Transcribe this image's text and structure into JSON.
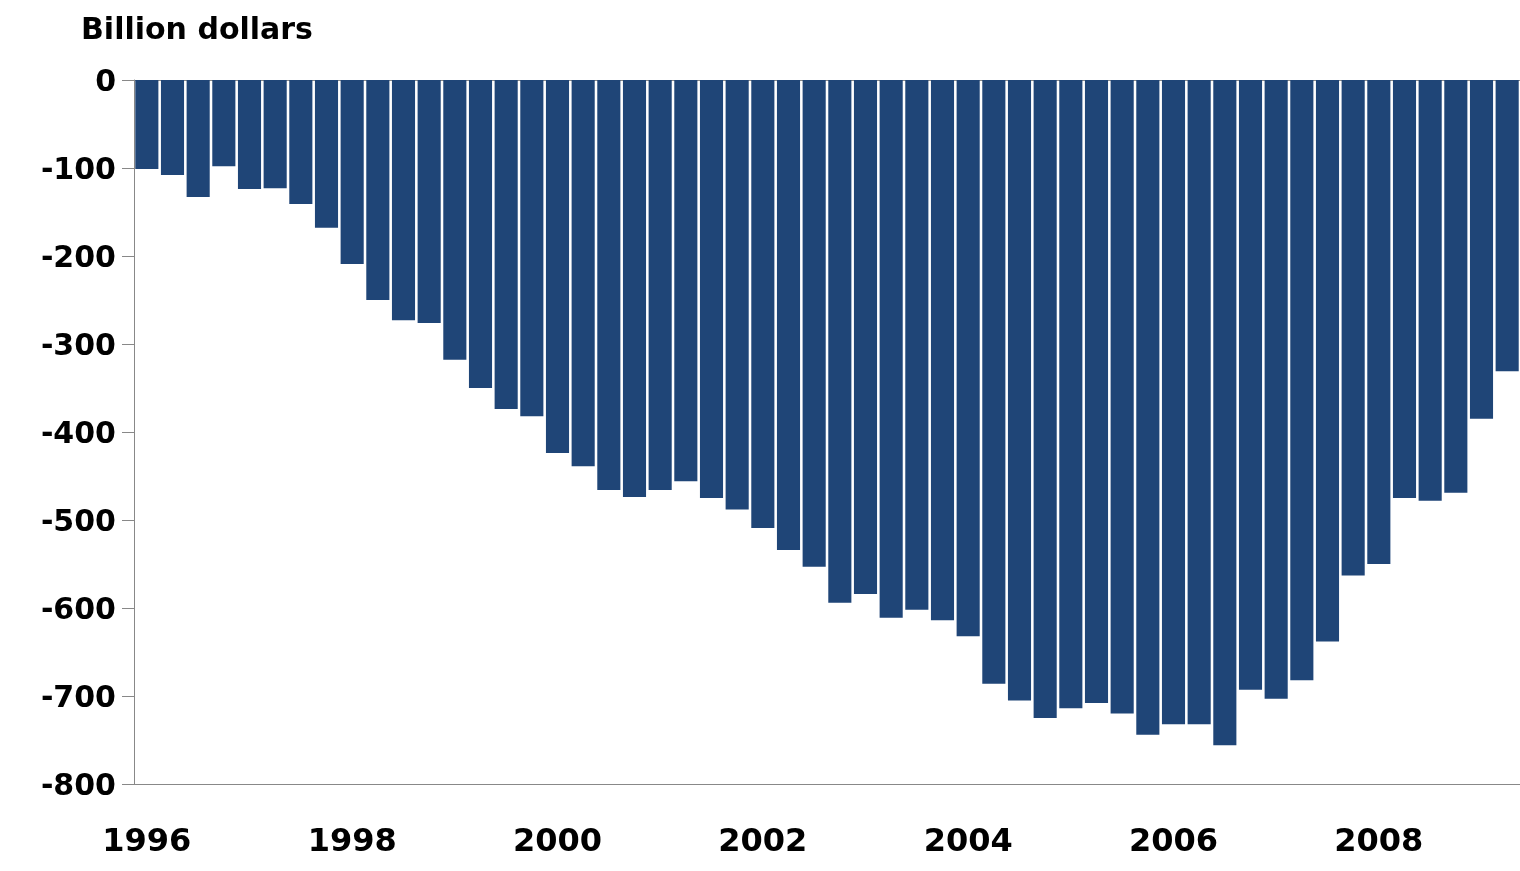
{
  "chart_data": {
    "type": "bar",
    "ylabel": "Billion dollars",
    "categories": [
      "1996",
      null,
      null,
      null,
      null,
      null,
      null,
      null,
      "1998",
      null,
      null,
      null,
      null,
      null,
      null,
      null,
      "2000",
      null,
      null,
      null,
      null,
      null,
      null,
      null,
      "2002",
      null,
      null,
      null,
      null,
      null,
      null,
      null,
      "2004",
      null,
      null,
      null,
      null,
      null,
      null,
      null,
      "2006",
      null,
      null,
      null,
      null,
      null,
      null,
      null,
      "2008",
      null,
      null,
      null,
      null,
      null
    ],
    "values": [
      -101,
      -108,
      -133,
      -98,
      -124,
      -123,
      -141,
      -168,
      -209,
      -250,
      -273,
      -276,
      -318,
      -350,
      -374,
      -382,
      -424,
      -439,
      -466,
      -474,
      -466,
      -456,
      -475,
      -488,
      -509,
      -534,
      -553,
      -594,
      -584,
      -611,
      -602,
      -614,
      -632,
      -686,
      -705,
      -725,
      -714,
      -708,
      -720,
      -744,
      -732,
      -732,
      -756,
      -693,
      -703,
      -682,
      -638,
      -563,
      -550,
      -475,
      -478,
      -469,
      -385,
      -331
    ],
    "color": "#1f4577",
    "ylim": [
      -800,
      0
    ],
    "yticks": [
      -800,
      -700,
      -600,
      -500,
      -400,
      -300,
      -200,
      -100,
      0
    ],
    "grid": false
  }
}
